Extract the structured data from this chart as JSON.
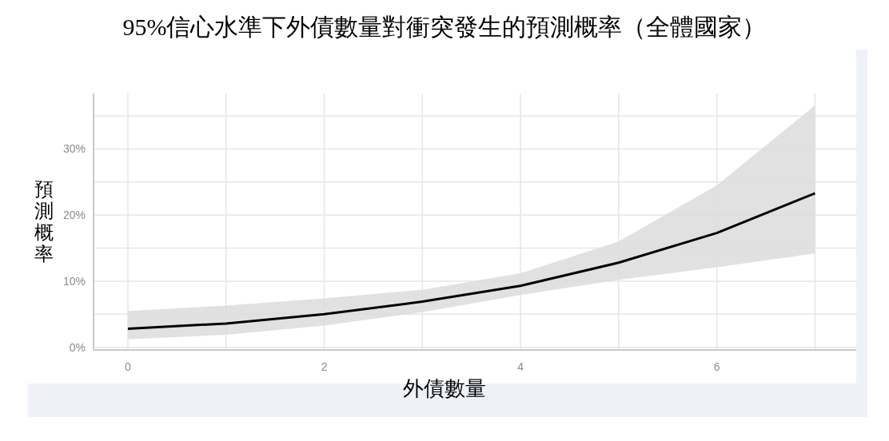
{
  "chart_data": {
    "type": "line",
    "title": "95%信心水準下外債數量對衝突發生的預測概率（全體國家）",
    "xlabel": "外債數量",
    "ylabel": "預測概率",
    "x": [
      0,
      1,
      2,
      3,
      4,
      5,
      6,
      7
    ],
    "series": [
      {
        "color": "#000000",
        "values": [
          2.8,
          3.6,
          5.0,
          6.9,
          9.3,
          12.8,
          17.3,
          23.3
        ],
        "lower": [
          1.2,
          1.9,
          3.3,
          5.3,
          7.9,
          10.2,
          12.1,
          14.2
        ],
        "upper": [
          5.5,
          6.3,
          7.4,
          8.7,
          11.2,
          16.0,
          24.5,
          36.6
        ]
      }
    ],
    "xlim": [
      -0.35,
      7.42
    ],
    "ylim": [
      -0.4,
      38.4
    ],
    "xticks": [
      0,
      {
        "value": 1,
        "label": null
      },
      2,
      {
        "value": 3,
        "label": null
      },
      4,
      {
        "value": 5,
        "label": null
      },
      6,
      {
        "value": 7,
        "label": null
      }
    ],
    "yticks": [
      {
        "value": 0,
        "label": "0%"
      },
      {
        "value": 5,
        "label": null
      },
      {
        "value": 10,
        "label": "10%"
      },
      {
        "value": 15,
        "label": null
      },
      {
        "value": 20,
        "label": "20%"
      },
      {
        "value": 25,
        "label": null
      },
      {
        "value": 30,
        "label": "30%"
      },
      {
        "value": 35,
        "label": null
      }
    ],
    "grid": true,
    "marker": "none",
    "line_style": "solid"
  }
}
